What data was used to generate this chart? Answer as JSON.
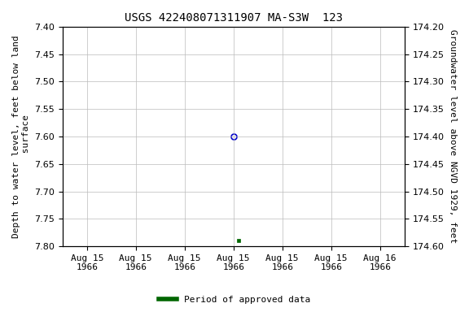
{
  "title": "USGS 422408071311907 MA-S3W  123",
  "ylabel_left": "Depth to water level, feet below land\n surface",
  "ylabel_right": "Groundwater level above NGVD 1929, feet",
  "ylim_left": [
    7.4,
    7.8
  ],
  "ylim_right": [
    174.2,
    174.6
  ],
  "yticks_left": [
    7.4,
    7.45,
    7.5,
    7.55,
    7.6,
    7.65,
    7.7,
    7.75,
    7.8
  ],
  "yticks_right": [
    174.6,
    174.55,
    174.5,
    174.45,
    174.4,
    174.35,
    174.3,
    174.25,
    174.2
  ],
  "data_points": [
    {
      "date_index": 3,
      "value": 7.6,
      "type": "open_circle",
      "color": "#0000cc"
    },
    {
      "date_index": 3,
      "value": 7.79,
      "type": "filled_square",
      "color": "#006600"
    }
  ],
  "tick_labels": [
    "Aug 15\n1966",
    "Aug 15\n1966",
    "Aug 15\n1966",
    "Aug 15\n1966",
    "Aug 15\n1966",
    "Aug 15\n1966",
    "Aug 16\n1966"
  ],
  "background_color": "#ffffff",
  "plot_bg_color": "#ffffff",
  "grid_color": "#bbbbbb",
  "legend_label": "Period of approved data",
  "legend_color": "#006600",
  "title_fontsize": 10,
  "label_fontsize": 8,
  "tick_fontsize": 8
}
